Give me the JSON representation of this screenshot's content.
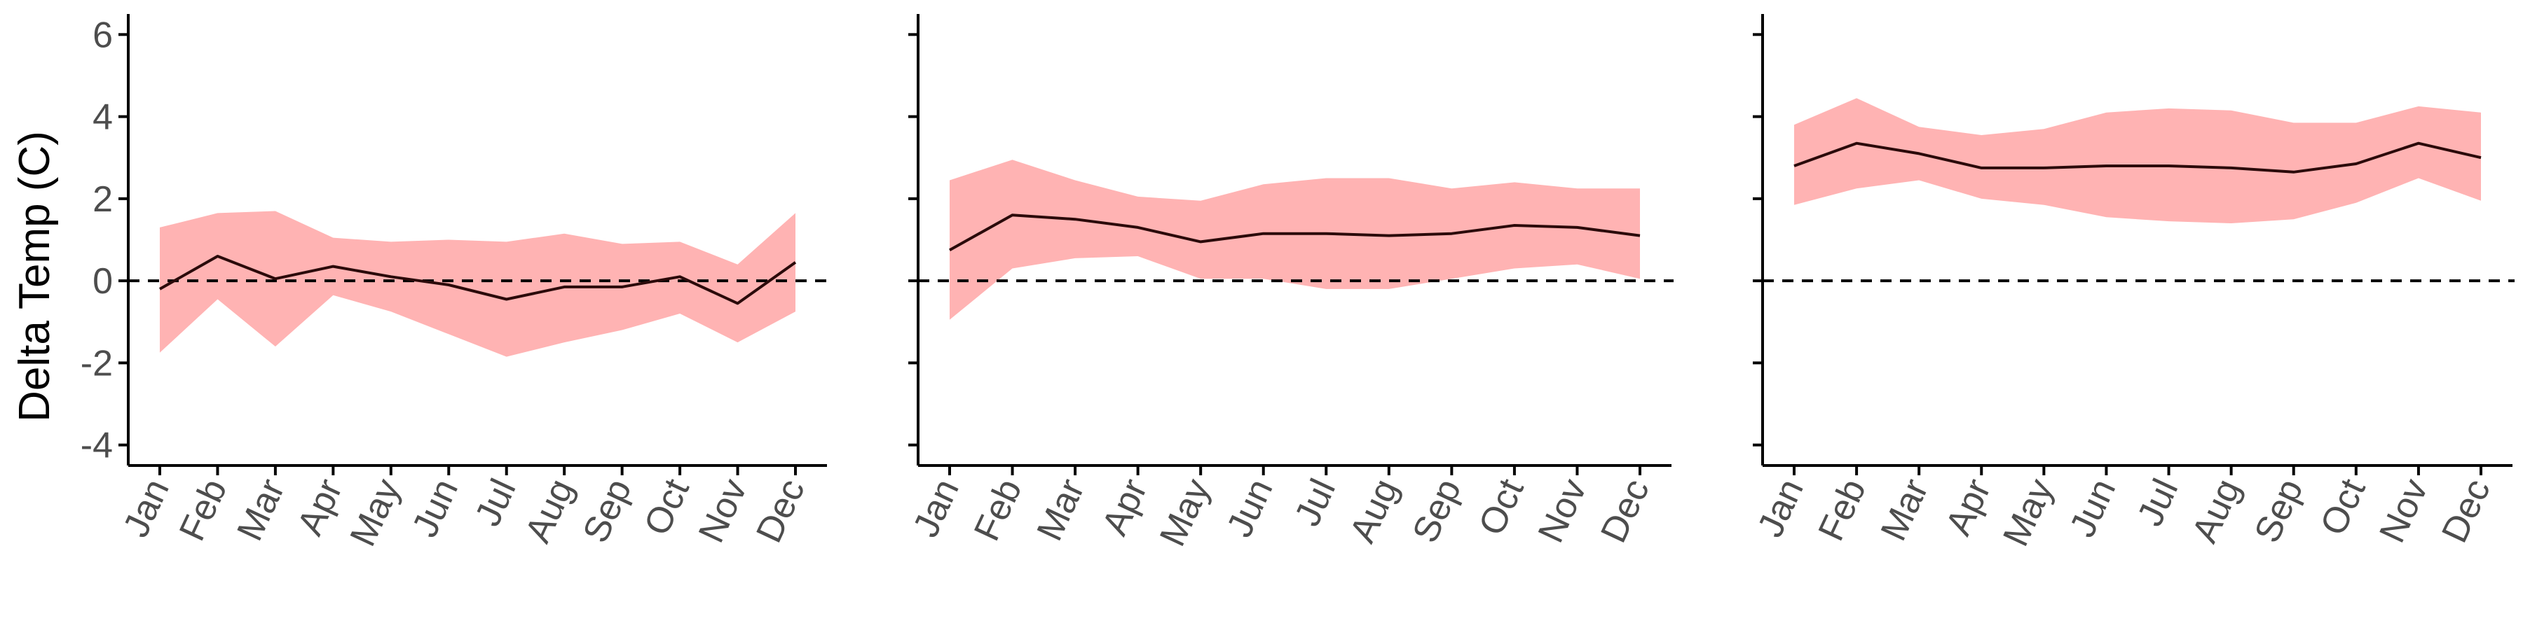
{
  "chart_data": {
    "type": "line",
    "ylabel": "Delta Temp (C)",
    "xlabel": "",
    "categories": [
      "Jan",
      "Feb",
      "Mar",
      "Apr",
      "May",
      "Jun",
      "Jul",
      "Aug",
      "Sep",
      "Oct",
      "Nov",
      "Dec"
    ],
    "ylim": [
      -4.5,
      6.5
    ],
    "yticks": [
      -4,
      -2,
      0,
      2,
      4,
      6
    ],
    "reference_line": {
      "y": 0,
      "style": "dashed"
    },
    "grid": false,
    "legend": "none",
    "colors": {
      "band": "#ffb3b3",
      "line": "#2b0a0a",
      "axis": "#000000",
      "reference": "#000000"
    },
    "panels": [
      {
        "series": [
          {
            "mean": [
              -0.2,
              0.6,
              0.05,
              0.35,
              0.1,
              -0.1,
              -0.45,
              -0.15,
              -0.15,
              0.1,
              -0.55,
              0.45
            ],
            "upper": [
              1.3,
              1.65,
              1.7,
              1.05,
              0.95,
              1.0,
              0.95,
              1.15,
              0.9,
              0.95,
              0.4,
              1.65
            ],
            "lower": [
              -1.75,
              -0.45,
              -1.6,
              -0.35,
              -0.75,
              -1.3,
              -1.85,
              -1.5,
              -1.2,
              -0.8,
              -1.5,
              -0.75
            ]
          }
        ]
      },
      {
        "series": [
          {
            "mean": [
              0.75,
              1.6,
              1.5,
              1.3,
              0.95,
              1.15,
              1.15,
              1.1,
              1.15,
              1.35,
              1.3,
              1.1
            ],
            "upper": [
              2.45,
              2.95,
              2.45,
              2.05,
              1.95,
              2.35,
              2.5,
              2.5,
              2.25,
              2.4,
              2.25,
              2.25
            ],
            "lower": [
              -0.95,
              0.3,
              0.55,
              0.6,
              0.05,
              0.05,
              -0.2,
              -0.2,
              0.05,
              0.3,
              0.4,
              0.05
            ]
          }
        ]
      },
      {
        "series": [
          {
            "mean": [
              2.8,
              3.35,
              3.1,
              2.75,
              2.75,
              2.8,
              2.8,
              2.75,
              2.65,
              2.85,
              3.35,
              3.0
            ],
            "upper": [
              3.8,
              4.45,
              3.75,
              3.55,
              3.7,
              4.1,
              4.2,
              4.15,
              3.85,
              3.85,
              4.25,
              4.1
            ],
            "lower": [
              1.85,
              2.25,
              2.45,
              2.0,
              1.85,
              1.55,
              1.45,
              1.4,
              1.5,
              1.9,
              2.5,
              1.95
            ]
          }
        ]
      }
    ]
  }
}
